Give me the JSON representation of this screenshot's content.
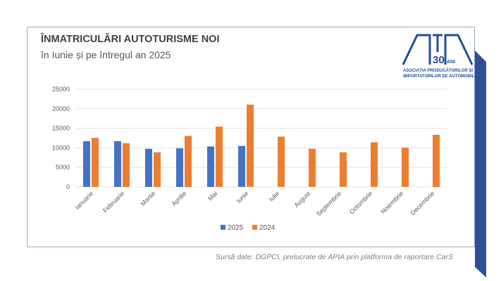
{
  "header": {
    "title": "ÎNMATRICULĂRI AUTOTURISME NOI",
    "subtitle": "în Iunie și pe întregul an 2025"
  },
  "logo": {
    "text": "APIA",
    "years": "30",
    "years_suffix": "ANI",
    "line1": "ASOCIAȚIA PRODUCĂTORILOR ȘI",
    "line2": "IMPORTATORILOR DE AUTOMOBILE"
  },
  "source": "Sursă date: DGPCI, prelucrate de APIA prin platforma de raportare CarS",
  "colors": {
    "s2025": "#4472c4",
    "s2024": "#ed7d31",
    "brand": "#1f4e9c"
  },
  "chart_data": {
    "type": "bar",
    "title": "",
    "xlabel": "",
    "ylabel": "",
    "categories": [
      "Ianuarie",
      "Februarie",
      "Martie",
      "Aprilie",
      "Mai",
      "Iunie",
      "Iulie",
      "August",
      "Septembrie",
      "Octombrie",
      "Noiembrie",
      "Decembrie"
    ],
    "series": [
      {
        "name": "2025",
        "values": [
          11700,
          11700,
          9750,
          9870,
          10350,
          10470,
          null,
          null,
          null,
          null,
          null,
          null
        ]
      },
      {
        "name": "2024",
        "values": [
          12560,
          11180,
          8850,
          13040,
          15430,
          21050,
          12860,
          9750,
          8850,
          11420,
          10050,
          13340
        ]
      }
    ],
    "ylim": [
      0,
      25000
    ],
    "yticks": [
      "0",
      "5000",
      "10000",
      "15000",
      "20000",
      "25000"
    ],
    "grid": true,
    "legend": "bottom"
  }
}
